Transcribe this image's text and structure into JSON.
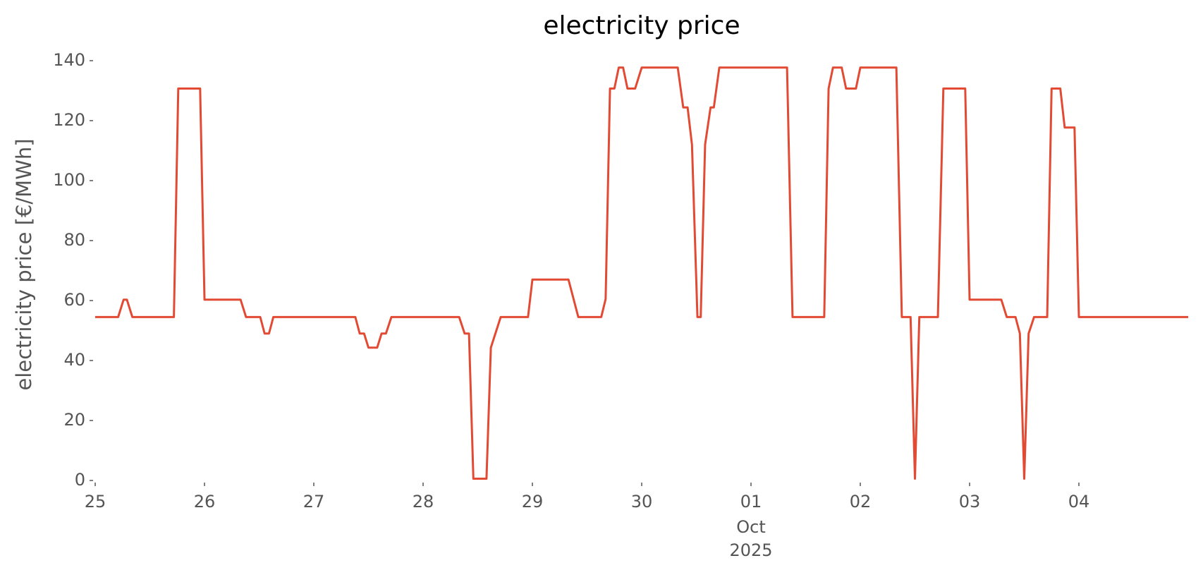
{
  "chart_data": {
    "type": "line",
    "title": "electricity price",
    "ylabel": "electricity price [€/MWh]",
    "x": [
      0,
      0.21,
      0.26,
      0.29,
      0.34,
      0.72,
      0.76,
      0.96,
      1.0,
      1.33,
      1.38,
      1.51,
      1.55,
      1.59,
      1.63,
      2.38,
      2.42,
      2.46,
      2.5,
      2.58,
      2.62,
      2.66,
      2.71,
      3.33,
      3.38,
      3.42,
      3.46,
      3.58,
      3.62,
      3.71,
      3.96,
      4.0,
      4.33,
      4.42,
      4.63,
      4.67,
      4.71,
      4.75,
      4.79,
      4.83,
      4.87,
      4.94,
      5.0,
      5.33,
      5.38,
      5.42,
      5.46,
      5.51,
      5.54,
      5.58,
      5.63,
      5.66,
      5.71,
      6.33,
      6.38,
      6.67,
      6.71,
      6.75,
      6.83,
      6.87,
      6.96,
      7.0,
      7.33,
      7.38,
      7.46,
      7.5,
      7.54,
      7.71,
      7.76,
      7.96,
      8.0,
      8.29,
      8.34,
      8.42,
      8.46,
      8.5,
      8.54,
      8.59,
      8.71,
      8.75,
      8.83,
      8.87,
      8.96,
      9.0,
      10.0
    ],
    "values": [
      54.5,
      54.5,
      60.3,
      60.3,
      54.5,
      54.5,
      130.7,
      130.7,
      60.3,
      60.3,
      54.5,
      54.5,
      49,
      49,
      54.5,
      54.5,
      49,
      49,
      44.3,
      44.3,
      49,
      49,
      54.5,
      54.5,
      49,
      49,
      0.6,
      0.6,
      44.3,
      54.5,
      54.5,
      67,
      67,
      54.5,
      54.5,
      60.5,
      130.7,
      130.7,
      137.7,
      137.7,
      130.7,
      130.7,
      137.7,
      137.7,
      124.4,
      124.4,
      112,
      54.5,
      54.5,
      112,
      124.4,
      124.4,
      137.7,
      137.7,
      54.5,
      54.5,
      130.7,
      137.7,
      137.7,
      130.7,
      130.7,
      137.7,
      137.7,
      54.5,
      54.5,
      0.6,
      54.5,
      54.5,
      130.7,
      130.7,
      60.3,
      60.3,
      54.5,
      54.5,
      49,
      0.6,
      49,
      54.5,
      54.5,
      130.7,
      130.7,
      117.7,
      117.7,
      54.5,
      54.5
    ],
    "color": "#e24a33",
    "xlim": [
      0,
      10
    ],
    "xticks": [
      {
        "value": 0,
        "label": "25"
      },
      {
        "value": 1,
        "label": "26"
      },
      {
        "value": 2,
        "label": "27"
      },
      {
        "value": 3,
        "label": "28"
      },
      {
        "value": 4,
        "label": "29"
      },
      {
        "value": 5,
        "label": "30"
      },
      {
        "value": 6,
        "label": "01"
      },
      {
        "value": 7,
        "label": "02"
      },
      {
        "value": 8,
        "label": "03"
      },
      {
        "value": 9,
        "label": "04"
      }
    ],
    "x_month": "Oct",
    "x_year": "2025",
    "ylim": [
      0,
      140
    ],
    "yticks": [
      0,
      20,
      40,
      60,
      80,
      100,
      120,
      140
    ]
  }
}
